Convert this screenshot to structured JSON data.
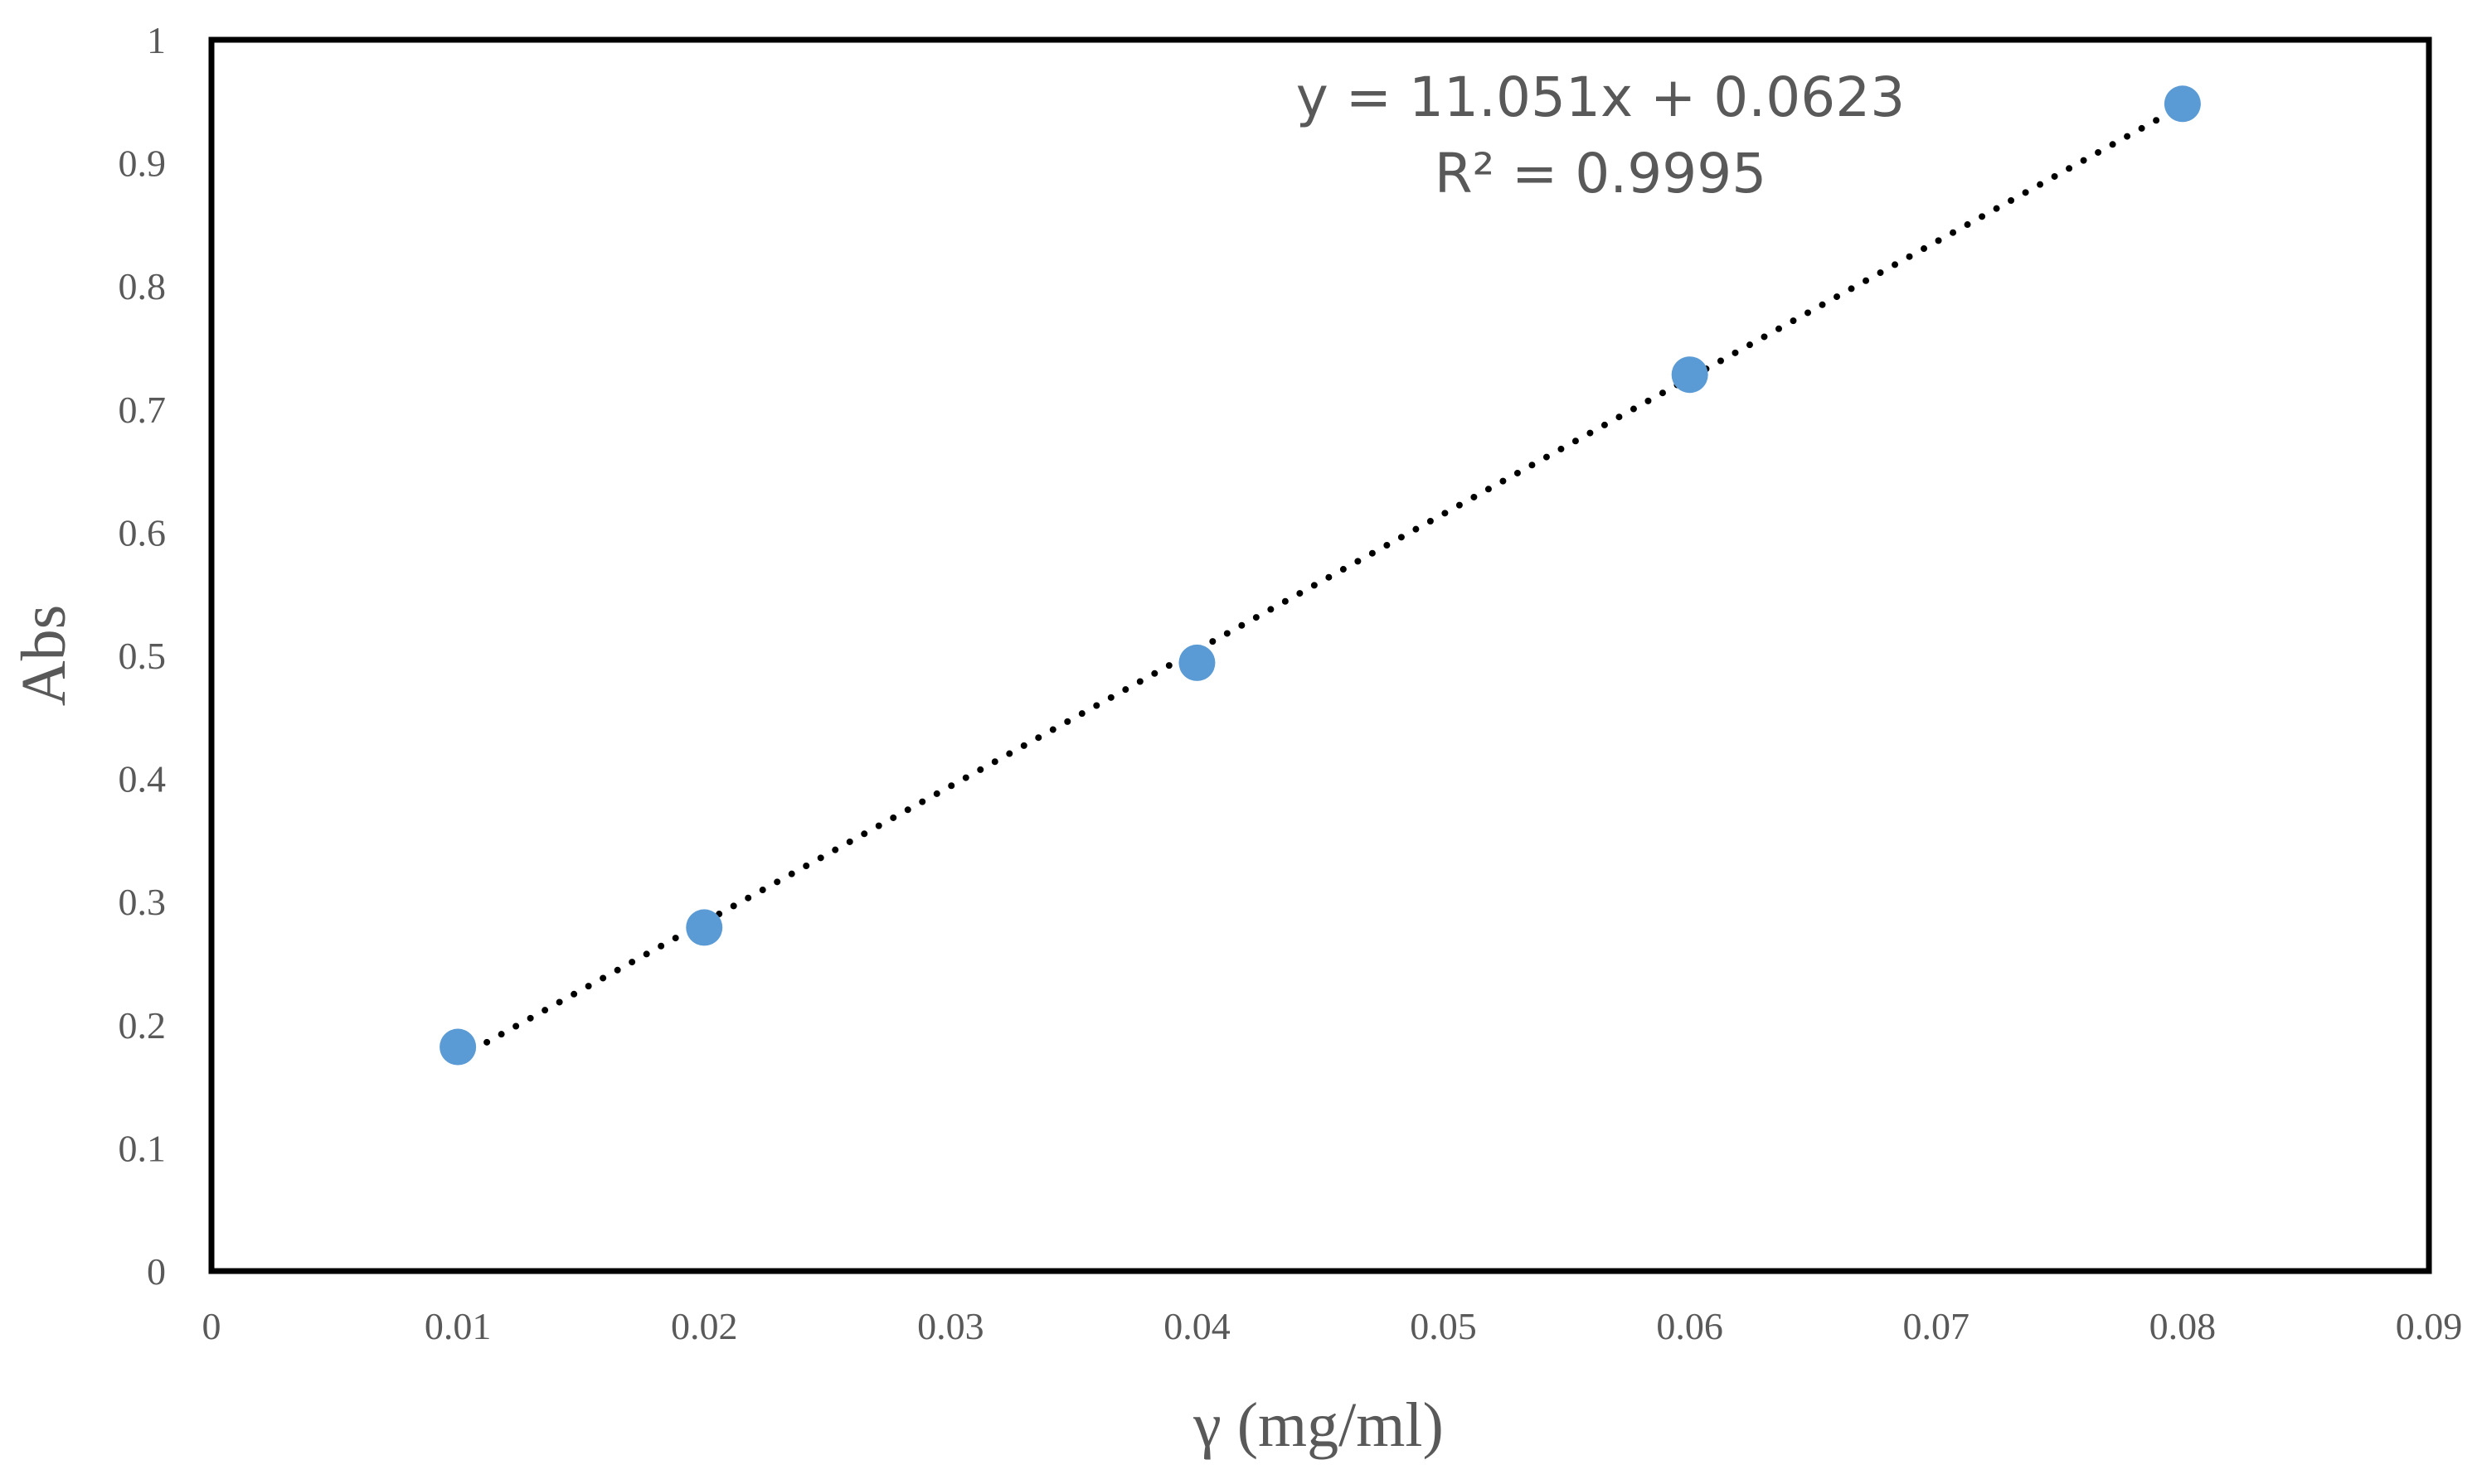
{
  "chart_data": {
    "type": "scatter",
    "title": "",
    "xlabel": "γ (mg/ml)",
    "ylabel": "Abs",
    "xlim": [
      0,
      0.09
    ],
    "ylim": [
      0,
      1
    ],
    "x_ticks": [
      "0",
      "0.01",
      "0.02",
      "0.03",
      "0.04",
      "0.05",
      "0.06",
      "0.07",
      "0.08",
      "0.09"
    ],
    "y_ticks": [
      "0",
      "0.1",
      "0.2",
      "0.3",
      "0.4",
      "0.5",
      "0.6",
      "0.7",
      "0.8",
      "0.9",
      "1"
    ],
    "series": [
      {
        "x": [
          0.01,
          0.02,
          0.04,
          0.06,
          0.08
        ],
        "y": [
          0.182,
          0.279,
          0.494,
          0.728,
          0.948
        ],
        "color": "#5b9bd5"
      }
    ],
    "trendline": {
      "type": "linear",
      "slope": 11.051,
      "intercept": 0.0623,
      "style": "dotted",
      "color": "#000000",
      "x_range": [
        0.01,
        0.08
      ]
    },
    "annotations": {
      "equation": "y = 11.051x + 0.0623",
      "r_squared": "R² = 0.9995"
    },
    "grid": false,
    "legend": "none"
  }
}
